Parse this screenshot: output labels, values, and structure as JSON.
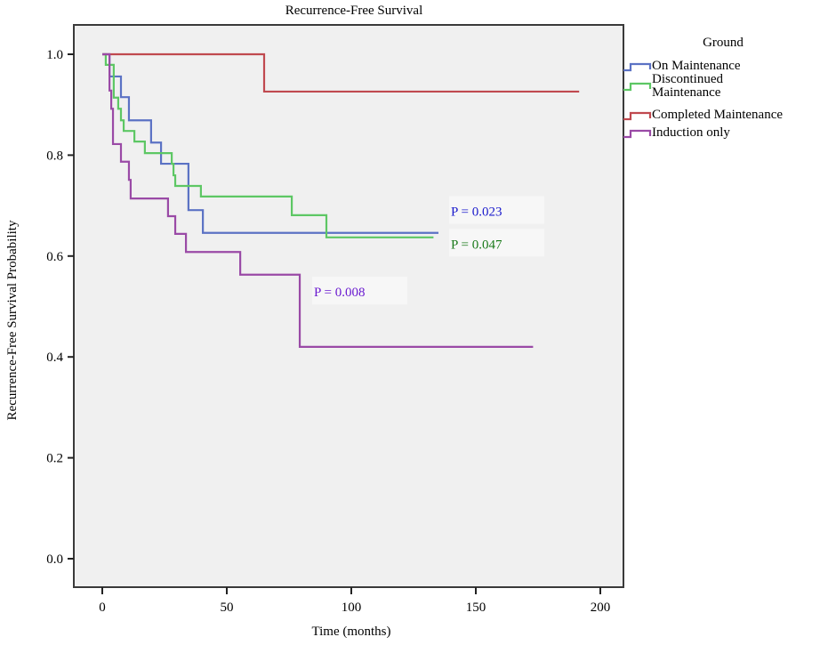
{
  "chart_data": {
    "type": "line",
    "subtype": "kaplan-meier-step",
    "title": "Recurrence-Free Survival",
    "xlabel": "Time (months)",
    "ylabel": "Recurrence-Free Survival Probability",
    "xlim": [
      -2,
      208
    ],
    "ylim": [
      -0.06,
      1.06
    ],
    "xticks": [
      0,
      50,
      100,
      150,
      200
    ],
    "xtick_labels": [
      "0",
      "50",
      "100",
      "150",
      "200"
    ],
    "yticks": [
      0.0,
      0.2,
      0.4,
      0.6,
      0.8,
      1.0
    ],
    "ytick_labels": [
      "0.0",
      "0.2",
      "0.4",
      "0.6",
      "0.8",
      "1.0"
    ],
    "grid": false,
    "legend": {
      "title": "Ground",
      "placement": "right"
    },
    "series": [
      {
        "name": "On Maintenance",
        "legend_lines": [
          "On Maintenance"
        ],
        "color": "#5b72c4",
        "steps": [
          [
            0,
            1.0
          ],
          [
            2.9,
            0.956
          ],
          [
            7.5,
            0.915
          ],
          [
            10.7,
            0.869
          ],
          [
            19.6,
            0.825
          ],
          [
            23.6,
            0.783
          ],
          [
            34.6,
            0.691
          ],
          [
            40.4,
            0.646
          ]
        ],
        "end_time": 135
      },
      {
        "name": "Discontinued Maintenance",
        "legend_lines": [
          "Discontinued",
          "Maintenance"
        ],
        "color": "#5dc764",
        "steps": [
          [
            0,
            1.0
          ],
          [
            1.4,
            0.979
          ],
          [
            4.6,
            0.914
          ],
          [
            6.4,
            0.892
          ],
          [
            7.5,
            0.869
          ],
          [
            8.6,
            0.848
          ],
          [
            12.9,
            0.827
          ],
          [
            17.1,
            0.804
          ],
          [
            27.9,
            0.783
          ],
          [
            28.6,
            0.76
          ],
          [
            29.3,
            0.739
          ],
          [
            39.6,
            0.718
          ],
          [
            76.1,
            0.681
          ],
          [
            90.0,
            0.637
          ]
        ],
        "end_time": 133
      },
      {
        "name": "Completed Maintenance",
        "legend_lines": [
          "Completed Maintenance"
        ],
        "color": "#c0494f",
        "steps": [
          [
            0,
            1.0
          ],
          [
            65.0,
            0.926
          ]
        ],
        "end_time": 191.5
      },
      {
        "name": "Induction only",
        "legend_lines": [
          "Induction only"
        ],
        "color": "#9a4aa6",
        "steps": [
          [
            0,
            1.0
          ],
          [
            2.9,
            0.928
          ],
          [
            3.6,
            0.892
          ],
          [
            4.3,
            0.822
          ],
          [
            7.5,
            0.787
          ],
          [
            10.7,
            0.751
          ],
          [
            11.4,
            0.714
          ],
          [
            26.4,
            0.679
          ],
          [
            29.3,
            0.644
          ],
          [
            33.6,
            0.608
          ],
          [
            55.4,
            0.563
          ],
          [
            79.3,
            0.42
          ]
        ],
        "end_time": 173
      }
    ],
    "annotations": [
      {
        "text": "P = 0.023",
        "color": "#1a1acc",
        "series": "On Maintenance",
        "x": 140,
        "y": 0.68
      },
      {
        "text": "P = 0.047",
        "color": "#1a7a1a",
        "series": "Discontinued Maintenance",
        "x": 140,
        "y": 0.615
      },
      {
        "text": "P = 0.008",
        "color": "#6a1ad0",
        "series": "Induction only",
        "x": 85,
        "y": 0.52
      }
    ]
  }
}
